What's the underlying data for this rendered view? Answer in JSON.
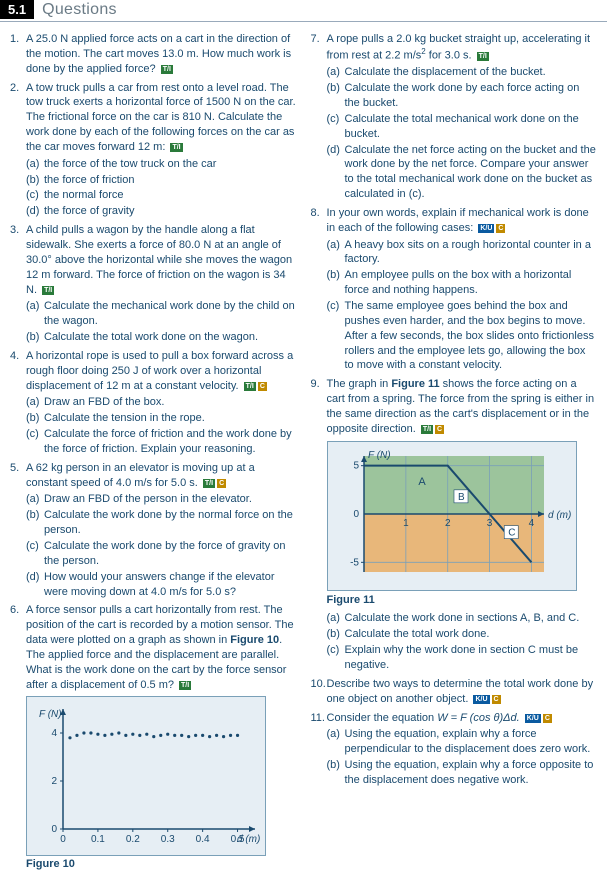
{
  "header": {
    "num": "5.1",
    "title": "Questions"
  },
  "tags": {
    "TI": "T/I",
    "TIC": "T/I C",
    "KUC": "K/U C",
    "KU": "K/U"
  },
  "q1": {
    "text": "A 25.0 N applied force acts on a cart in the direction of the motion. The cart moves 13.0 m. How much work is done by the applied force?"
  },
  "q2": {
    "text": "A tow truck pulls a car from rest onto a level road. The tow truck exerts a horizontal force of 1500 N on the car. The frictional force on the car is 810 N. Calculate the work done by each of the following forces on the car as the car moves forward 12 m:",
    "a": "the force of the tow truck on the car",
    "b": "the force of friction",
    "c": "the normal force",
    "d": "the force of gravity"
  },
  "q3": {
    "text": "A child pulls a wagon by the handle along a flat sidewalk. She exerts a force of 80.0 N at an angle of 30.0° above the horizontal while she moves the wagon 12 m forward. The force of friction on the wagon is 34 N.",
    "a": "Calculate the mechanical work done by the child on the wagon.",
    "b": "Calculate the total work done on the wagon."
  },
  "q4": {
    "text": "A horizontal rope is used to pull a box forward across a rough floor doing 250 J of work over a horizontal displacement of 12 m at a constant velocity.",
    "a": "Draw an FBD of the box.",
    "b": "Calculate the tension in the rope.",
    "c": "Calculate the force of friction and the work done by the force of friction. Explain your reasoning."
  },
  "q5": {
    "text": "A 62 kg person in an elevator is moving up at a constant speed of 4.0 m/s for 5.0 s.",
    "a": "Draw an FBD of the person in the elevator.",
    "b": "Calculate the work done by the normal force on the person.",
    "c": "Calculate the work done by the force of gravity on the person.",
    "d": "How would your answers change if the elevator were moving down at 4.0 m/s for 5.0 s?"
  },
  "q6": {
    "text_a": "A force sensor pulls a cart horizontally from rest. The position of the cart is recorded by a motion sensor. The data were plotted on a graph as shown in ",
    "fig10_ref": "Figure 10",
    "text_b": ". The applied force and the displacement are parallel. What is the work done on the cart by the force sensor after a displacement of 0.5 m?"
  },
  "fig10": {
    "caption": "Figure 10",
    "yaxis": "F (N)",
    "xaxis": "d (m)",
    "xticks": [
      "0",
      "0.1",
      "0.2",
      "0.3",
      "0.4",
      "0.5"
    ],
    "yticks": [
      "0",
      "2",
      "4"
    ],
    "xlim": [
      0,
      0.55
    ],
    "ylim": [
      0,
      5
    ],
    "axis_color": "#1a4a6e",
    "grid_color": "#bcd0dd",
    "bg": "#e6eef4",
    "point_color": "#1a4a6e",
    "data_x": [
      0.02,
      0.04,
      0.06,
      0.08,
      0.1,
      0.12,
      0.14,
      0.16,
      0.18,
      0.2,
      0.22,
      0.24,
      0.26,
      0.28,
      0.3,
      0.32,
      0.34,
      0.36,
      0.38,
      0.4,
      0.42,
      0.44,
      0.46,
      0.48,
      0.5
    ],
    "data_y": [
      3.8,
      3.9,
      4.0,
      4.0,
      3.95,
      3.9,
      3.95,
      4.0,
      3.9,
      3.95,
      3.9,
      3.95,
      3.85,
      3.9,
      3.95,
      3.9,
      3.9,
      3.85,
      3.9,
      3.9,
      3.85,
      3.9,
      3.85,
      3.9,
      3.9
    ]
  },
  "q7": {
    "text_a": "A rope pulls a 2.0 kg bucket straight up, accelerating it from rest at 2.2 m/s",
    "text_b": " for 3.0 s.",
    "a": "Calculate the displacement of the bucket.",
    "b": "Calculate the work done by each force acting on the bucket.",
    "c": "Calculate the total mechanical work done on the bucket.",
    "d": "Calculate the net force acting on the bucket and the work done by the net force. Compare your answer to the total mechanical work done on the bucket as calculated in (c)."
  },
  "q8": {
    "text": "In your own words, explain if mechanical work is done in each of the following cases:",
    "a": "A heavy box sits on a rough horizontal counter in a factory.",
    "b": "An employee pulls on the box with a horizontal force and nothing happens.",
    "c": "The same employee goes behind the box and pushes even harder, and the box begins to move. After a few seconds, the box slides onto frictionless rollers and the employee lets go, allowing the box to move with a constant velocity."
  },
  "q9": {
    "text_a": "The graph in ",
    "fig11_ref": "Figure 11",
    "text_b": " shows the force acting on a cart from a spring. The force from the spring is either in the same direction as the cart's displacement or in the opposite direction.",
    "a": "Calculate the work done in sections A, B, and C.",
    "b": "Calculate the total work done.",
    "c": "Explain why the work done in section C must be negative."
  },
  "fig11": {
    "caption": "Figure 11",
    "yaxis": "F (N)",
    "xaxis": "d (m)",
    "xticks": [
      "1",
      "2",
      "3",
      "4"
    ],
    "yticks": [
      "-5",
      "0",
      "5"
    ],
    "xlim": [
      0,
      4.3
    ],
    "ylim": [
      -6,
      6
    ],
    "bg_top": "#9cc49c",
    "bg_bot": "#e8b77a",
    "line_color": "#1a4a6e",
    "grid_color": "#7aa0b8",
    "labels": {
      "A": "A",
      "B": "B",
      "C": "C"
    },
    "poly": [
      [
        0,
        5
      ],
      [
        2,
        5
      ],
      [
        3,
        0
      ],
      [
        4,
        -5
      ]
    ]
  },
  "q10": {
    "text": "Describe two ways to determine the total work done by one object on another object."
  },
  "q11": {
    "text_a": "Consider the equation ",
    "eq": "W = F (cos θ)Δd.",
    "a": "Using the equation, explain why a force perpendicular to the displacement does zero work.",
    "b": "Using the equation, explain why a force opposite to the displacement does negative work."
  }
}
